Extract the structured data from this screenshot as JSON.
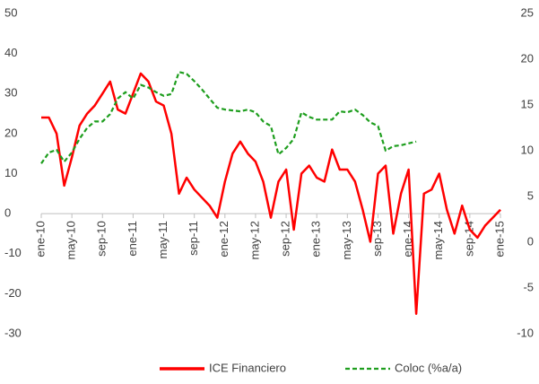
{
  "chart_data": {
    "type": "line",
    "categories": [
      "ene-10",
      null,
      null,
      null,
      "may-10",
      null,
      null,
      null,
      "sep-10",
      null,
      null,
      null,
      "ene-11",
      null,
      null,
      null,
      "may-11",
      null,
      null,
      null,
      "sep-11",
      null,
      null,
      null,
      "ene-12",
      null,
      null,
      null,
      "may-12",
      null,
      null,
      null,
      "sep-12",
      null,
      null,
      null,
      "ene-13",
      null,
      null,
      null,
      "may-13",
      null,
      null,
      null,
      "sep-13",
      null,
      null,
      null,
      "ene-14",
      null,
      null,
      null,
      "may-14",
      null,
      null,
      null,
      "sep-14",
      null,
      null,
      null,
      "ene-15"
    ],
    "series": [
      {
        "name": "ICE Financiero",
        "color": "#ff0000",
        "axis": "y",
        "values": [
          24,
          24,
          20,
          7,
          14,
          22,
          25,
          27,
          30,
          33,
          26,
          25,
          30,
          35,
          33,
          28,
          27,
          20,
          5,
          9,
          6,
          4,
          2,
          -1,
          8,
          15,
          18,
          15,
          13,
          8,
          -1,
          8,
          11,
          -4,
          10,
          12,
          9,
          8,
          16,
          11,
          11,
          8,
          1,
          -7,
          10,
          12,
          -5,
          5,
          11,
          -25,
          5,
          6,
          10,
          1,
          -5,
          2,
          -4,
          -6,
          -3,
          -1,
          1
        ]
      },
      {
        "name": "Coloc (%a/a)",
        "color": "#1e9e1e",
        "axis": "y2",
        "dashed": true,
        "values": [
          8.6,
          9.8,
          10.1,
          8.8,
          9.8,
          11.3,
          12.5,
          13.2,
          13.2,
          14,
          15.7,
          16.4,
          15.7,
          17.2,
          16.9,
          16.4,
          16,
          16.2,
          18.6,
          18.4,
          17.6,
          16.7,
          15.7,
          14.7,
          14.5,
          14.4,
          14.3,
          14.5,
          14.2,
          13.2,
          12.7,
          9.6,
          10.3,
          11.3,
          14.2,
          13.7,
          13.4,
          13.4,
          13.4,
          14.3,
          14.2,
          14.5,
          13.9,
          13.1,
          12.7,
          10,
          10.5,
          10.6,
          10.8,
          11,
          null,
          null,
          null,
          null,
          null,
          null,
          null,
          null,
          null,
          null,
          null
        ]
      }
    ],
    "ylim": [
      -30,
      50
    ],
    "yticks": [
      -30,
      -20,
      -10,
      0,
      10,
      20,
      30,
      40,
      50
    ],
    "y2lim": [
      -10,
      25
    ],
    "y2ticks": [
      -10,
      -5,
      0,
      5,
      10,
      15,
      20,
      25
    ],
    "grid": false,
    "legend": "bottom"
  }
}
